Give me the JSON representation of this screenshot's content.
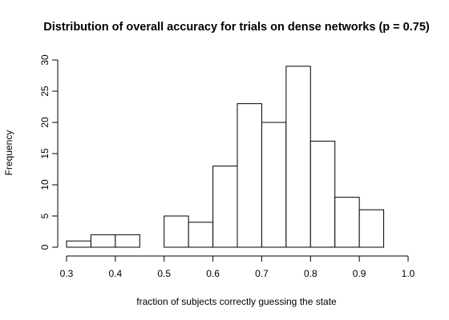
{
  "chart_data": {
    "type": "bar",
    "title": "Distribution of overall accuracy for trials on dense networks (p = 0.75)",
    "xlabel": "fraction of subjects correctly guessing the state",
    "ylabel": "Frequency",
    "xlim": [
      0.3,
      1.0
    ],
    "ylim": [
      0,
      30
    ],
    "x_ticks": [
      "0.3",
      "0.4",
      "0.5",
      "0.6",
      "0.7",
      "0.8",
      "0.9",
      "1.0"
    ],
    "y_ticks": [
      "0",
      "5",
      "10",
      "15",
      "20",
      "25",
      "30"
    ],
    "bins": [
      {
        "start": 0.3,
        "end": 0.35,
        "count": 1
      },
      {
        "start": 0.35,
        "end": 0.4,
        "count": 2
      },
      {
        "start": 0.4,
        "end": 0.45,
        "count": 2
      },
      {
        "start": 0.45,
        "end": 0.5,
        "count": 0
      },
      {
        "start": 0.5,
        "end": 0.55,
        "count": 5
      },
      {
        "start": 0.55,
        "end": 0.6,
        "count": 4
      },
      {
        "start": 0.6,
        "end": 0.65,
        "count": 13
      },
      {
        "start": 0.65,
        "end": 0.7,
        "count": 23
      },
      {
        "start": 0.7,
        "end": 0.75,
        "count": 20
      },
      {
        "start": 0.75,
        "end": 0.8,
        "count": 29
      },
      {
        "start": 0.8,
        "end": 0.85,
        "count": 17
      },
      {
        "start": 0.85,
        "end": 0.9,
        "count": 8
      },
      {
        "start": 0.9,
        "end": 0.95,
        "count": 6
      }
    ],
    "grid": false,
    "legend": "none"
  }
}
